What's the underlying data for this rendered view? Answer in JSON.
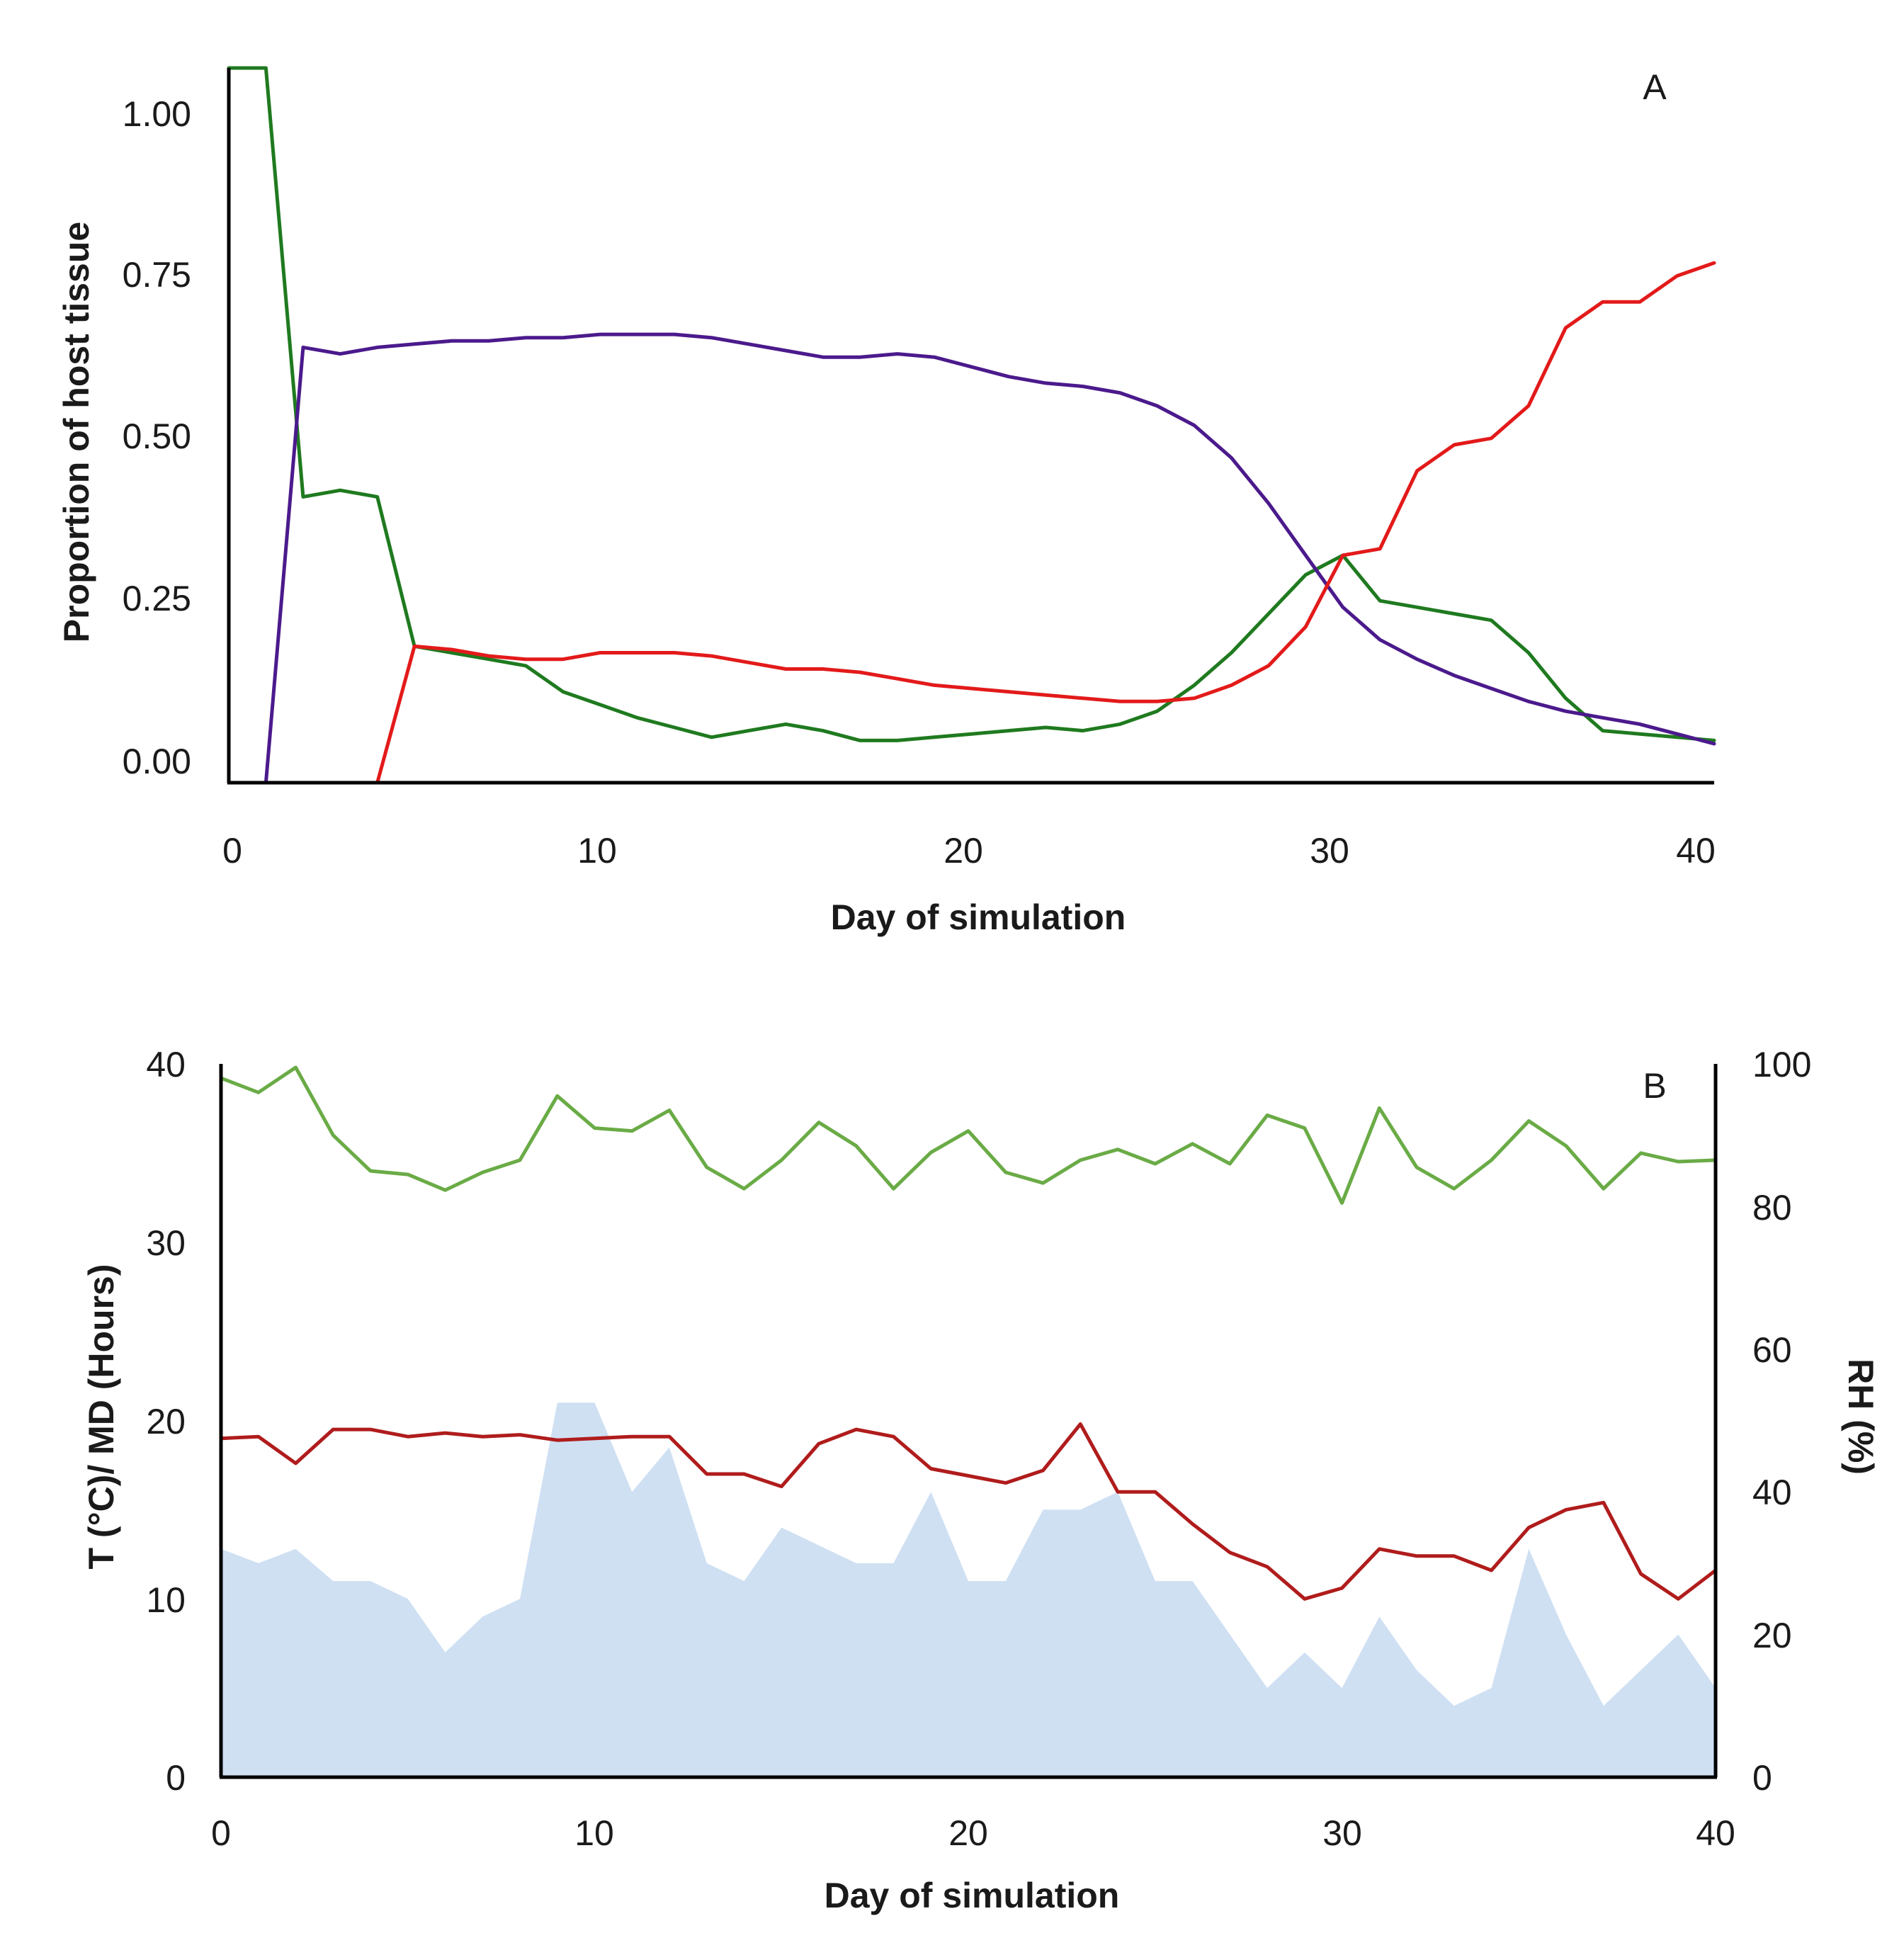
{
  "chart_data": [
    {
      "type": "line",
      "panel_label": "A",
      "title": "",
      "xlabel": "Day of simulation",
      "ylabel": "Proportion of host tissue",
      "xlim": [
        0,
        40
      ],
      "ylim": [
        0,
        1.1
      ],
      "x_ticks": [
        "0",
        "10",
        "20",
        "30",
        "40"
      ],
      "y_ticks": [
        "0.00",
        "0.25",
        "0.50",
        "0.75",
        "1.00"
      ],
      "legend": "none",
      "grid": false,
      "series": [
        {
          "color": "#1f7a1f",
          "x": [
            0,
            1,
            2,
            3,
            4,
            5,
            6,
            7,
            8,
            9,
            10,
            11,
            12,
            13,
            14,
            15,
            16,
            17,
            18,
            19,
            20,
            21,
            22,
            23,
            24,
            25,
            26,
            27,
            28,
            29,
            30,
            31,
            32,
            33,
            34,
            35,
            36,
            37,
            38,
            39,
            40
          ],
          "y": [
            1.1,
            1.1,
            0.44,
            0.45,
            0.44,
            0.21,
            0.2,
            0.19,
            0.18,
            0.14,
            0.12,
            0.1,
            0.085,
            0.07,
            0.08,
            0.09,
            0.08,
            0.065,
            0.065,
            0.07,
            0.075,
            0.08,
            0.085,
            0.08,
            0.09,
            0.11,
            0.15,
            0.2,
            0.26,
            0.32,
            0.35,
            0.28,
            0.27,
            0.26,
            0.25,
            0.2,
            0.13,
            0.08,
            0.075,
            0.07,
            0.065
          ]
        },
        {
          "color": "#4b1a8c",
          "x": [
            0,
            1,
            2,
            3,
            4,
            5,
            6,
            7,
            8,
            9,
            10,
            11,
            12,
            13,
            14,
            15,
            16,
            17,
            18,
            19,
            20,
            21,
            22,
            23,
            24,
            25,
            26,
            27,
            28,
            29,
            30,
            31,
            32,
            33,
            34,
            35,
            36,
            37,
            38,
            39,
            40
          ],
          "y": [
            0,
            0,
            0.67,
            0.66,
            0.67,
            0.675,
            0.68,
            0.68,
            0.685,
            0.685,
            0.69,
            0.69,
            0.69,
            0.685,
            0.675,
            0.665,
            0.655,
            0.655,
            0.66,
            0.655,
            0.64,
            0.625,
            0.615,
            0.61,
            0.6,
            0.58,
            0.55,
            0.5,
            0.43,
            0.35,
            0.27,
            0.22,
            0.19,
            0.165,
            0.145,
            0.125,
            0.11,
            0.1,
            0.09,
            0.075,
            0.06
          ]
        },
        {
          "color": "#e31a1a",
          "x": [
            0,
            1,
            2,
            3,
            4,
            5,
            6,
            7,
            8,
            9,
            10,
            11,
            12,
            13,
            14,
            15,
            16,
            17,
            18,
            19,
            20,
            21,
            22,
            23,
            24,
            25,
            26,
            27,
            28,
            29,
            30,
            31,
            32,
            33,
            34,
            35,
            36,
            37,
            38,
            39,
            40
          ],
          "y": [
            0,
            0,
            0,
            0,
            0,
            0.21,
            0.205,
            0.195,
            0.19,
            0.19,
            0.2,
            0.2,
            0.2,
            0.195,
            0.185,
            0.175,
            0.175,
            0.17,
            0.16,
            0.15,
            0.145,
            0.14,
            0.135,
            0.13,
            0.125,
            0.125,
            0.13,
            0.15,
            0.18,
            0.24,
            0.35,
            0.36,
            0.48,
            0.52,
            0.53,
            0.58,
            0.7,
            0.74,
            0.74,
            0.78,
            0.8
          ]
        }
      ]
    },
    {
      "type": "line",
      "panel_label": "B",
      "title": "",
      "xlabel": "Day of simulation",
      "ylabel": "T (°C)/ MD (Hours)",
      "y2label": "RH (%)",
      "xlim": [
        0,
        40
      ],
      "ylim": [
        0,
        40
      ],
      "y2lim": [
        0,
        100
      ],
      "x_ticks": [
        "0",
        "10",
        "20",
        "30",
        "40"
      ],
      "y_ticks": [
        "0",
        "10",
        "20",
        "30",
        "40"
      ],
      "y2_ticks": [
        "0",
        "20",
        "40",
        "60",
        "80",
        "100"
      ],
      "legend": "none",
      "grid": false,
      "series": [
        {
          "type": "area",
          "axis": "left",
          "color": "#cfe0f3",
          "x": [
            0,
            1,
            2,
            3,
            4,
            5,
            6,
            7,
            8,
            9,
            10,
            11,
            12,
            13,
            14,
            15,
            16,
            17,
            18,
            19,
            20,
            21,
            22,
            23,
            24,
            25,
            26,
            27,
            28,
            29,
            30,
            31,
            32,
            33,
            34,
            35,
            36,
            37,
            38,
            39,
            40
          ],
          "y": [
            12.8,
            12,
            12.8,
            11,
            11,
            10,
            7,
            9,
            10,
            21,
            21,
            16,
            18.5,
            12,
            11,
            14,
            13,
            12,
            12,
            16,
            11,
            11,
            15,
            15,
            16,
            11,
            11,
            8,
            5,
            7,
            5,
            9,
            6,
            4,
            5,
            12.8,
            8,
            4,
            6,
            8,
            5
          ]
        },
        {
          "type": "line",
          "axis": "left",
          "color": "#b01c1c",
          "x": [
            0,
            1,
            2,
            3,
            4,
            5,
            6,
            7,
            8,
            9,
            10,
            11,
            12,
            13,
            14,
            15,
            16,
            17,
            18,
            19,
            20,
            21,
            22,
            23,
            24,
            25,
            26,
            27,
            28,
            29,
            30,
            31,
            32,
            33,
            34,
            35,
            36,
            37,
            38,
            39,
            40
          ],
          "y": [
            19,
            19.1,
            17.6,
            19.5,
            19.5,
            19.1,
            19.3,
            19.1,
            19.2,
            18.9,
            19.0,
            19.1,
            19.1,
            17.0,
            17.0,
            16.3,
            18.7,
            19.5,
            19.1,
            17.3,
            16.9,
            16.5,
            17.2,
            19.8,
            16,
            16,
            14.2,
            12.6,
            11.8,
            10.0,
            10.6,
            12.8,
            12.4,
            12.4,
            11.6,
            14.0,
            15.0,
            15.4,
            11.4,
            10.0,
            11.6
          ]
        },
        {
          "type": "line",
          "axis": "right",
          "color": "#6aab46",
          "x": [
            0,
            1,
            2,
            3,
            4,
            5,
            6,
            7,
            8,
            9,
            10,
            11,
            12,
            13,
            14,
            15,
            16,
            17,
            18,
            19,
            20,
            21,
            22,
            23,
            24,
            25,
            26,
            27,
            28,
            29,
            30,
            31,
            32,
            33,
            34,
            35,
            36,
            37,
            38,
            39,
            40
          ],
          "y": [
            98,
            96,
            99.5,
            90,
            85,
            84.5,
            82.3,
            84.8,
            86.5,
            95.5,
            91,
            90.6,
            93.5,
            85.5,
            82.5,
            86.5,
            91.8,
            88.5,
            82.5,
            87.6,
            90.6,
            84.8,
            83.3,
            86.5,
            88,
            86,
            88.8,
            86,
            92.8,
            91,
            80.5,
            93.8,
            85.5,
            82.5,
            86.5,
            92,
            88.5,
            82.5,
            87.5,
            86.3,
            86.5
          ]
        }
      ]
    }
  ]
}
